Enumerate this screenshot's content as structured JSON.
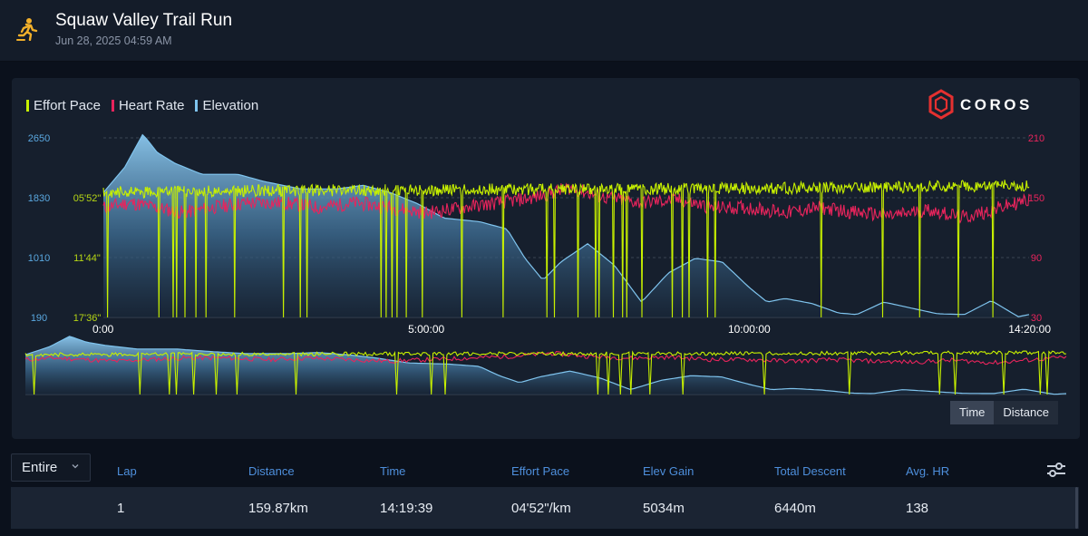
{
  "header": {
    "title": "Squaw Valley Trail Run",
    "subtitle": "Jun 28, 2025 04:59 AM"
  },
  "legend": [
    {
      "label": "Effort Pace",
      "color": "#c7f000"
    },
    {
      "label": "Heart Rate",
      "color": "#e8245c"
    },
    {
      "label": "Elevation",
      "color": "#7fc4ee"
    }
  ],
  "chart_data": {
    "type": "line",
    "brand": "COROS",
    "x_ticks": [
      "0:00",
      "5:00:00",
      "10:00:00",
      "14:20:00"
    ],
    "x_tick_seconds": [
      0,
      18000,
      36000,
      51600
    ],
    "x_range_seconds": [
      0,
      51600
    ],
    "elevation_axis": {
      "ticks": [
        2650,
        1830,
        1010,
        190
      ],
      "range": [
        190,
        2650
      ],
      "unit": "m",
      "color": "#5aa8e0"
    },
    "pace_axis": {
      "ticks": [
        "05'52\"",
        "11'44\"",
        "17'36\""
      ],
      "color": "#b6d614"
    },
    "hr_axis": {
      "ticks": [
        210,
        150,
        90,
        30
      ],
      "range": [
        30,
        210
      ],
      "color": "#e8245c"
    },
    "series": [
      {
        "name": "Elevation",
        "color": "#7fc4ee",
        "points": [
          [
            0,
            1900
          ],
          [
            1200,
            2250
          ],
          [
            2200,
            2700
          ],
          [
            3000,
            2450
          ],
          [
            4000,
            2300
          ],
          [
            5500,
            2150
          ],
          [
            7500,
            2150
          ],
          [
            9000,
            2050
          ],
          [
            11000,
            1950
          ],
          [
            13000,
            1950
          ],
          [
            14500,
            2000
          ],
          [
            16000,
            1900
          ],
          [
            17500,
            1750
          ],
          [
            19000,
            1550
          ],
          [
            21000,
            1500
          ],
          [
            22500,
            1400
          ],
          [
            23500,
            1000
          ],
          [
            24500,
            700
          ],
          [
            25500,
            950
          ],
          [
            27000,
            1200
          ],
          [
            28500,
            900
          ],
          [
            30000,
            400
          ],
          [
            31500,
            800
          ],
          [
            33000,
            1000
          ],
          [
            34500,
            950
          ],
          [
            36000,
            600
          ],
          [
            37000,
            400
          ],
          [
            38000,
            450
          ],
          [
            39500,
            380
          ],
          [
            41000,
            250
          ],
          [
            42000,
            230
          ],
          [
            43500,
            400
          ],
          [
            45000,
            320
          ],
          [
            46500,
            240
          ],
          [
            48000,
            230
          ],
          [
            49500,
            420
          ],
          [
            51000,
            200
          ],
          [
            51600,
            230
          ]
        ]
      },
      {
        "name": "Heart Rate",
        "color": "#e8245c",
        "points": [
          [
            0,
            140
          ],
          [
            1500,
            145
          ],
          [
            3000,
            140
          ],
          [
            4500,
            135
          ],
          [
            6000,
            140
          ],
          [
            8000,
            145
          ],
          [
            10000,
            145
          ],
          [
            12000,
            140
          ],
          [
            14000,
            145
          ],
          [
            16000,
            140
          ],
          [
            18000,
            135
          ],
          [
            20000,
            140
          ],
          [
            22000,
            145
          ],
          [
            24000,
            150
          ],
          [
            26000,
            160
          ],
          [
            28000,
            150
          ],
          [
            30000,
            145
          ],
          [
            32000,
            148
          ],
          [
            34000,
            140
          ],
          [
            36000,
            140
          ],
          [
            38000,
            135
          ],
          [
            40000,
            140
          ],
          [
            42000,
            135
          ],
          [
            44000,
            132
          ],
          [
            46000,
            138
          ],
          [
            48000,
            130
          ],
          [
            50000,
            140
          ],
          [
            51600,
            148
          ]
        ]
      },
      {
        "name": "Effort Pace",
        "color": "#c7f000",
        "points": [
          [
            0,
            "05'20\""
          ],
          [
            10000,
            "05'10\""
          ],
          [
            20000,
            "05'05\""
          ],
          [
            30000,
            "05'00\""
          ],
          [
            40000,
            "04'55\""
          ],
          [
            51600,
            "04'40\""
          ]
        ]
      }
    ]
  },
  "toggle": {
    "time": "Time",
    "distance": "Distance"
  },
  "lap_table": {
    "selector": "Entire",
    "headers": [
      "Lap",
      "Distance",
      "Time",
      "Effort Pace",
      "Elev Gain",
      "Total Descent",
      "Avg. HR"
    ],
    "rows": [
      [
        "1",
        "159.87km",
        "14:19:39",
        "04'52\"/km",
        "5034m",
        "6440m",
        "138"
      ]
    ]
  }
}
